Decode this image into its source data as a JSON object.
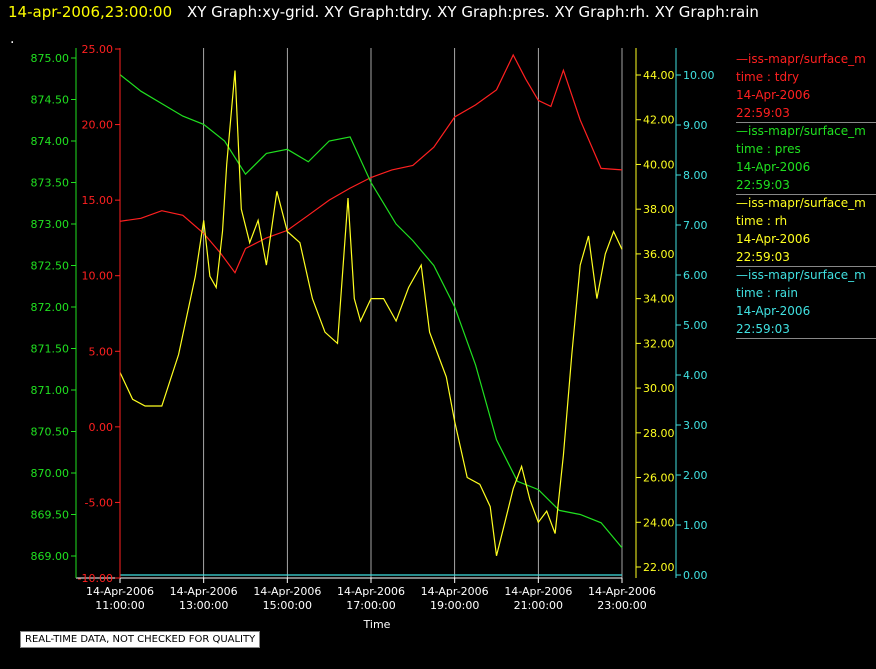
{
  "header": {
    "timestamp": "14-apr-2006,23:00:00",
    "titles": "XY Graph:xy-grid.  XY Graph:tdry.  XY Graph:pres.  XY Graph:rh.  XY Graph:rain",
    "dot": "."
  },
  "notice": "REAL-TIME DATA, NOT CHECKED FOR QUALITY",
  "colors": {
    "tdry": "#ff2020",
    "pres": "#20e020",
    "rh": "#ffff20",
    "rain": "#40e0e0",
    "grid": "#d0d0d0"
  },
  "legend": [
    {
      "source": "—iss-mapr/surface_m",
      "line1": "time : tdry",
      "line2": "14-Apr-2006",
      "line3": "22:59:03",
      "color": "#ff2020"
    },
    {
      "source": "—iss-mapr/surface_m",
      "line1": "time : pres",
      "line2": "14-Apr-2006",
      "line3": "22:59:03",
      "color": "#20e020"
    },
    {
      "source": "—iss-mapr/surface_m",
      "line1": "time : rh",
      "line2": "14-Apr-2006",
      "line3": "22:59:03",
      "color": "#ffff20"
    },
    {
      "source": "—iss-mapr/surface_m",
      "line1": "time : rain",
      "line2": "14-Apr-2006",
      "line3": "22:59:03",
      "color": "#40e0e0"
    }
  ],
  "chart_data": {
    "type": "line",
    "xlabel": "Time",
    "x_range": [
      11.0,
      23.0
    ],
    "x_ticks": [
      {
        "x": 11,
        "date": "14-Apr-2006",
        "time": "11:00:00"
      },
      {
        "x": 13,
        "date": "14-Apr-2006",
        "time": "13:00:00"
      },
      {
        "x": 15,
        "date": "14-Apr-2006",
        "time": "15:00:00"
      },
      {
        "x": 17,
        "date": "14-Apr-2006",
        "time": "17:00:00"
      },
      {
        "x": 19,
        "date": "14-Apr-2006",
        "time": "19:00:00"
      },
      {
        "x": 21,
        "date": "14-Apr-2006",
        "time": "21:00:00"
      },
      {
        "x": 23,
        "date": "14-Apr-2006",
        "time": "23:00:00"
      }
    ],
    "grid": "vertical lines at time ticks",
    "axes": [
      {
        "name": "pres",
        "side": "left-outer",
        "color": "#20e020",
        "range": [
          868.8,
          875.2
        ],
        "ticks": [
          "875.00",
          "874.50",
          "874.00",
          "873.50",
          "873.00",
          "872.50",
          "872.00",
          "871.50",
          "871.00",
          "870.50",
          "870.00",
          "869.50",
          "869.00"
        ],
        "tick_values": [
          875,
          874.5,
          874,
          873.5,
          873,
          872.5,
          872,
          871.5,
          871,
          870.5,
          870,
          869.5,
          869
        ]
      },
      {
        "name": "tdry",
        "side": "left-inner",
        "color": "#ff2020",
        "range": [
          -10,
          25
        ],
        "ticks": [
          "25.00",
          "20.00",
          "15.00",
          "10.00",
          "5.00",
          "0.00",
          "-5.00",
          "-10.00"
        ],
        "tick_values": [
          25,
          20,
          15,
          10,
          5,
          0,
          -5,
          -10
        ]
      },
      {
        "name": "rh",
        "side": "right-inner",
        "color": "#ffff20",
        "range": [
          21.6,
          44.8
        ],
        "ticks": [
          "44.00",
          "42.00",
          "40.00",
          "38.00",
          "36.00",
          "34.00",
          "32.00",
          "30.00",
          "28.00",
          "26.00",
          "24.00",
          "22.00"
        ],
        "tick_values": [
          44,
          42,
          40,
          38,
          36,
          34,
          32,
          30,
          28,
          26,
          24,
          22
        ]
      },
      {
        "name": "rain",
        "side": "right-outer",
        "color": "#40e0e0",
        "range": [
          -0.05,
          10.2
        ],
        "ticks": [
          "10.00",
          "9.00",
          "8.00",
          "7.00",
          "6.00",
          "5.00",
          "4.00",
          "3.00",
          "2.00",
          "1.00",
          "0.00"
        ],
        "tick_values": [
          10,
          9,
          8,
          7,
          6,
          5,
          4,
          3,
          2,
          1,
          0
        ]
      }
    ],
    "series": [
      {
        "name": "tdry",
        "axis": "tdry",
        "color": "#ff2020",
        "x": [
          11.0,
          11.5,
          12.0,
          12.5,
          13.0,
          13.4,
          13.75,
          14.0,
          14.5,
          15.0,
          15.5,
          16.0,
          16.5,
          17.0,
          17.5,
          18.0,
          18.5,
          19.0,
          19.5,
          20.0,
          20.4,
          20.7,
          21.0,
          21.3,
          21.6,
          22.0,
          22.5,
          23.0
        ],
        "values": [
          13.6,
          13.8,
          14.3,
          14.0,
          12.8,
          11.5,
          10.2,
          11.8,
          12.5,
          13.0,
          14.0,
          15.0,
          15.8,
          16.5,
          17.0,
          17.3,
          18.5,
          20.5,
          21.3,
          22.3,
          24.6,
          23.0,
          21.6,
          21.2,
          23.6,
          20.3,
          17.1,
          17.0
        ]
      },
      {
        "name": "pres",
        "axis": "pres",
        "color": "#20e020",
        "x": [
          11.0,
          11.5,
          12.0,
          12.5,
          13.0,
          13.5,
          14.0,
          14.5,
          15.0,
          15.5,
          16.0,
          16.5,
          17.0,
          17.3,
          17.6,
          18.0,
          18.5,
          19.0,
          19.5,
          20.0,
          20.5,
          21.0,
          21.5,
          22.0,
          22.5,
          23.0
        ],
        "values": [
          874.8,
          874.6,
          874.45,
          874.3,
          874.2,
          874.0,
          873.6,
          873.85,
          873.9,
          873.75,
          874.0,
          874.05,
          873.5,
          873.25,
          873.0,
          872.8,
          872.5,
          872.0,
          871.3,
          870.4,
          869.9,
          869.8,
          869.55,
          869.5,
          869.4,
          869.1
        ]
      },
      {
        "name": "rh",
        "axis": "rh",
        "color": "#ffff20",
        "x": [
          11.0,
          11.3,
          11.6,
          12.0,
          12.4,
          12.8,
          13.0,
          13.15,
          13.3,
          13.45,
          13.55,
          13.75,
          13.9,
          14.1,
          14.3,
          14.5,
          14.75,
          15.0,
          15.3,
          15.6,
          15.9,
          16.2,
          16.45,
          16.6,
          16.75,
          17.0,
          17.3,
          17.6,
          17.9,
          18.2,
          18.4,
          18.6,
          18.8,
          19.0,
          19.3,
          19.6,
          19.85,
          20.0,
          20.2,
          20.4,
          20.6,
          20.8,
          21.0,
          21.2,
          21.4,
          21.6,
          21.8,
          22.0,
          22.2,
          22.4,
          22.6,
          22.8,
          23.0
        ],
        "values": [
          30.7,
          29.5,
          29.2,
          29.2,
          31.5,
          35.0,
          37.5,
          35.0,
          34.5,
          37.0,
          40.0,
          44.2,
          38.0,
          36.5,
          37.5,
          35.5,
          38.8,
          37.0,
          36.5,
          34.0,
          32.5,
          32.0,
          38.5,
          34.0,
          33.0,
          34.0,
          34.0,
          33.0,
          34.5,
          35.5,
          32.5,
          31.5,
          30.5,
          28.5,
          26.0,
          25.7,
          24.7,
          22.5,
          24.0,
          25.5,
          26.5,
          25.0,
          24.0,
          24.5,
          23.5,
          27.0,
          31.5,
          35.5,
          36.8,
          34.0,
          36.0,
          37.0,
          36.2
        ]
      },
      {
        "name": "rain",
        "axis": "rain",
        "color": "#40e0e0",
        "x": [
          11.0,
          23.0
        ],
        "values": [
          0.0,
          0.0
        ]
      }
    ]
  }
}
